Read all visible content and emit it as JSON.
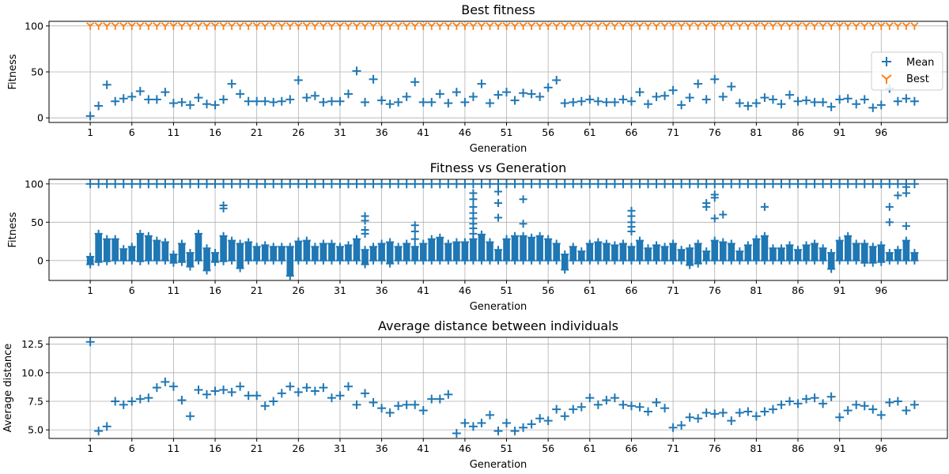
{
  "figure": {
    "colors": {
      "blue": "#1f77b4",
      "orange": "#ff7f0e",
      "grid": "#b0b0b0"
    }
  },
  "chart_data": [
    {
      "type": "scatter",
      "title": "Best fitness",
      "xlabel": "Generation",
      "ylabel": "Fitness",
      "xlim": [
        -3.95,
        103.95
      ],
      "ylim": [
        -5,
        105
      ],
      "xticks": [
        1,
        6,
        11,
        16,
        21,
        26,
        31,
        36,
        41,
        46,
        51,
        56,
        61,
        66,
        71,
        76,
        81,
        86,
        91,
        96
      ],
      "yticks": [
        0,
        50,
        100
      ],
      "grid": true,
      "legend": {
        "placement": "right",
        "entries": [
          "Mean",
          "Best"
        ]
      },
      "series": [
        {
          "name": "Mean",
          "marker": "plus",
          "color": "#1f77b4",
          "x": [
            1,
            2,
            3,
            4,
            5,
            6,
            7,
            8,
            9,
            10,
            11,
            12,
            13,
            14,
            15,
            16,
            17,
            18,
            19,
            20,
            21,
            22,
            23,
            24,
            25,
            26,
            27,
            28,
            29,
            30,
            31,
            32,
            33,
            34,
            35,
            36,
            37,
            38,
            39,
            40,
            41,
            42,
            43,
            44,
            45,
            46,
            47,
            48,
            49,
            50,
            51,
            52,
            53,
            54,
            55,
            56,
            57,
            58,
            59,
            60,
            61,
            62,
            63,
            64,
            65,
            66,
            67,
            68,
            69,
            70,
            71,
            72,
            73,
            74,
            75,
            76,
            77,
            78,
            79,
            80,
            81,
            82,
            83,
            84,
            85,
            86,
            87,
            88,
            89,
            90,
            91,
            92,
            93,
            94,
            95,
            96,
            97,
            98,
            99,
            100
          ],
          "values": [
            2,
            13,
            36,
            18,
            21,
            23,
            29,
            20,
            20,
            28,
            16,
            17,
            14,
            22,
            15,
            14,
            20,
            37,
            26,
            18,
            18,
            18,
            17,
            18,
            20,
            41,
            22,
            24,
            17,
            18,
            18,
            26,
            51,
            17,
            42,
            19,
            15,
            17,
            23,
            39,
            17,
            17,
            26,
            16,
            28,
            17,
            23,
            37,
            16,
            25,
            28,
            19,
            27,
            26,
            23,
            33,
            41,
            16,
            17,
            18,
            20,
            18,
            17,
            17,
            20,
            18,
            28,
            15,
            23,
            24,
            30,
            14,
            22,
            37,
            20,
            42,
            23,
            34,
            16,
            13,
            16,
            22,
            20,
            15,
            25,
            18,
            19,
            17,
            17,
            12,
            20,
            21,
            15,
            20,
            11,
            14,
            32,
            18,
            21,
            18
          ]
        },
        {
          "name": "Best",
          "marker": "tri_down",
          "color": "#ff7f0e",
          "x": [
            1,
            2,
            3,
            4,
            5,
            6,
            7,
            8,
            9,
            10,
            11,
            12,
            13,
            14,
            15,
            16,
            17,
            18,
            19,
            20,
            21,
            22,
            23,
            24,
            25,
            26,
            27,
            28,
            29,
            30,
            31,
            32,
            33,
            34,
            35,
            36,
            37,
            38,
            39,
            40,
            41,
            42,
            43,
            44,
            45,
            46,
            47,
            48,
            49,
            50,
            51,
            52,
            53,
            54,
            55,
            56,
            57,
            58,
            59,
            60,
            61,
            62,
            63,
            64,
            65,
            66,
            67,
            68,
            69,
            70,
            71,
            72,
            73,
            74,
            75,
            76,
            77,
            78,
            79,
            80,
            81,
            82,
            83,
            84,
            85,
            86,
            87,
            88,
            89,
            90,
            91,
            92,
            93,
            94,
            95,
            96,
            97,
            98,
            99,
            100
          ],
          "values": [
            100,
            100,
            100,
            100,
            100,
            100,
            100,
            100,
            100,
            100,
            100,
            100,
            100,
            100,
            100,
            100,
            100,
            100,
            100,
            100,
            100,
            100,
            100,
            100,
            100,
            100,
            100,
            100,
            100,
            100,
            100,
            100,
            100,
            100,
            100,
            100,
            100,
            100,
            100,
            100,
            100,
            100,
            100,
            100,
            100,
            100,
            100,
            100,
            100,
            100,
            100,
            100,
            100,
            100,
            100,
            100,
            100,
            100,
            100,
            100,
            100,
            100,
            100,
            100,
            100,
            100,
            100,
            100,
            100,
            100,
            100,
            100,
            100,
            100,
            100,
            100,
            100,
            100,
            100,
            100,
            100,
            100,
            100,
            100,
            100,
            100,
            100,
            100,
            100,
            100,
            100,
            100,
            100,
            100,
            100,
            100,
            100,
            100,
            100,
            100
          ]
        }
      ]
    },
    {
      "type": "scatter",
      "title": "Fitness vs Generation",
      "xlabel": "Generation",
      "ylabel": "Fitness",
      "xlim": [
        -3.95,
        103.95
      ],
      "ylim": [
        -26,
        106
      ],
      "xticks": [
        1,
        6,
        11,
        16,
        21,
        26,
        31,
        36,
        41,
        46,
        51,
        56,
        61,
        66,
        71,
        76,
        81,
        86,
        91,
        96
      ],
      "yticks": [
        0,
        50,
        100
      ],
      "grid": true,
      "series": [
        {
          "marker": "plus",
          "color": "#1f77b4",
          "description_of_dense_band": "per-generation individuals spread between low and high values",
          "band_low": [
            -5,
            -2,
            -1,
            0,
            0,
            0,
            -1,
            0,
            0,
            0,
            -3,
            -2,
            -8,
            0,
            -13,
            -2,
            -1,
            0,
            -10,
            0,
            0,
            0,
            0,
            0,
            -20,
            0,
            0,
            0,
            0,
            0,
            0,
            0,
            0,
            -5,
            0,
            0,
            -4,
            0,
            0,
            0,
            0,
            0,
            0,
            0,
            0,
            0,
            0,
            0,
            0,
            0,
            0,
            0,
            0,
            0,
            0,
            0,
            0,
            -12,
            0,
            0,
            0,
            0,
            0,
            0,
            0,
            0,
            0,
            0,
            0,
            0,
            0,
            0,
            -6,
            -4,
            0,
            0,
            0,
            0,
            0,
            0,
            0,
            0,
            0,
            0,
            0,
            0,
            0,
            0,
            0,
            -11,
            0,
            0,
            0,
            -3,
            -3,
            -2,
            0,
            0,
            0,
            0
          ],
          "band_high": [
            5,
            35,
            28,
            28,
            15,
            18,
            35,
            32,
            26,
            24,
            8,
            22,
            10,
            35,
            16,
            10,
            32,
            26,
            22,
            24,
            18,
            20,
            18,
            18,
            18,
            25,
            26,
            18,
            22,
            22,
            18,
            20,
            28,
            14,
            18,
            22,
            24,
            18,
            22,
            18,
            22,
            28,
            30,
            22,
            24,
            24,
            28,
            34,
            24,
            14,
            28,
            32,
            32,
            30,
            32,
            28,
            22,
            8,
            18,
            12,
            22,
            24,
            22,
            20,
            22,
            18,
            26,
            16,
            20,
            18,
            22,
            14,
            16,
            22,
            12,
            26,
            24,
            22,
            12,
            20,
            28,
            32,
            16,
            16,
            20,
            14,
            20,
            22,
            16,
            10,
            26,
            32,
            22,
            22,
            18,
            20,
            10,
            14,
            26,
            10
          ],
          "outliers": [
            {
              "x": 17,
              "y": 72
            },
            {
              "x": 17,
              "y": 68
            },
            {
              "x": 34,
              "y": 58
            },
            {
              "x": 34,
              "y": 52
            },
            {
              "x": 34,
              "y": 40
            },
            {
              "x": 34,
              "y": 35
            },
            {
              "x": 40,
              "y": 46
            },
            {
              "x": 40,
              "y": 38
            },
            {
              "x": 40,
              "y": 28
            },
            {
              "x": 47,
              "y": 88
            },
            {
              "x": 47,
              "y": 80
            },
            {
              "x": 47,
              "y": 70
            },
            {
              "x": 47,
              "y": 62
            },
            {
              "x": 47,
              "y": 55
            },
            {
              "x": 47,
              "y": 48
            },
            {
              "x": 47,
              "y": 42
            },
            {
              "x": 47,
              "y": 35
            },
            {
              "x": 50,
              "y": 90
            },
            {
              "x": 50,
              "y": 75
            },
            {
              "x": 50,
              "y": 56
            },
            {
              "x": 53,
              "y": 80
            },
            {
              "x": 53,
              "y": 48
            },
            {
              "x": 66,
              "y": 65
            },
            {
              "x": 66,
              "y": 58
            },
            {
              "x": 66,
              "y": 50
            },
            {
              "x": 66,
              "y": 44
            },
            {
              "x": 66,
              "y": 38
            },
            {
              "x": 75,
              "y": 75
            },
            {
              "x": 75,
              "y": 70
            },
            {
              "x": 76,
              "y": 86
            },
            {
              "x": 76,
              "y": 82
            },
            {
              "x": 76,
              "y": 55
            },
            {
              "x": 77,
              "y": 60
            },
            {
              "x": 82,
              "y": 70
            },
            {
              "x": 97,
              "y": 70
            },
            {
              "x": 97,
              "y": 50
            },
            {
              "x": 98,
              "y": 85
            },
            {
              "x": 99,
              "y": 96
            },
            {
              "x": 99,
              "y": 88
            },
            {
              "x": 99,
              "y": 45
            }
          ],
          "top_band": 100
        }
      ]
    },
    {
      "type": "scatter",
      "title": "Average distance between individuals",
      "xlabel": "Generation",
      "ylabel": "Average distance",
      "xlim": [
        -3.95,
        103.95
      ],
      "ylim": [
        4.25,
        13.1
      ],
      "xticks": [
        1,
        6,
        11,
        16,
        21,
        26,
        31,
        36,
        41,
        46,
        51,
        56,
        61,
        66,
        71,
        76,
        81,
        86,
        91,
        96
      ],
      "yticks": [
        5.0,
        7.5,
        10.0,
        12.5
      ],
      "ytick_labels": [
        "5.0",
        "7.5",
        "10.0",
        "12.5"
      ],
      "grid": true,
      "series": [
        {
          "marker": "plus",
          "color": "#1f77b4",
          "x": [
            1,
            2,
            3,
            4,
            5,
            6,
            7,
            8,
            9,
            10,
            11,
            12,
            13,
            14,
            15,
            16,
            17,
            18,
            19,
            20,
            21,
            22,
            23,
            24,
            25,
            26,
            27,
            28,
            29,
            30,
            31,
            32,
            33,
            34,
            35,
            36,
            37,
            38,
            39,
            40,
            41,
            42,
            43,
            44,
            45,
            46,
            47,
            48,
            49,
            50,
            51,
            52,
            53,
            54,
            55,
            56,
            57,
            58,
            59,
            60,
            61,
            62,
            63,
            64,
            65,
            66,
            67,
            68,
            69,
            70,
            71,
            72,
            73,
            74,
            75,
            76,
            77,
            78,
            79,
            80,
            81,
            82,
            83,
            84,
            85,
            86,
            87,
            88,
            89,
            90,
            91,
            92,
            93,
            94,
            95,
            96,
            97,
            98,
            99,
            100
          ],
          "values": [
            12.7,
            4.9,
            5.3,
            7.5,
            7.2,
            7.5,
            7.7,
            7.8,
            8.7,
            9.2,
            8.8,
            7.6,
            6.2,
            8.5,
            8.1,
            8.4,
            8.5,
            8.3,
            8.8,
            8.0,
            8.0,
            7.1,
            7.5,
            8.2,
            8.8,
            8.3,
            8.7,
            8.4,
            8.7,
            7.8,
            8.0,
            8.8,
            7.2,
            8.2,
            7.4,
            6.9,
            6.5,
            7.1,
            7.2,
            7.2,
            6.7,
            7.7,
            7.7,
            8.1,
            4.7,
            5.6,
            5.3,
            5.6,
            6.3,
            4.9,
            5.6,
            4.9,
            5.2,
            5.5,
            6.0,
            5.8,
            6.8,
            6.2,
            6.8,
            7.0,
            7.8,
            7.2,
            7.6,
            7.8,
            7.2,
            7.1,
            7.0,
            6.6,
            7.4,
            6.9,
            5.2,
            5.4,
            6.1,
            6.0,
            6.5,
            6.4,
            6.5,
            5.8,
            6.5,
            6.6,
            6.2,
            6.6,
            6.8,
            7.2,
            7.5,
            7.3,
            7.7,
            7.8,
            7.3,
            7.9,
            6.1,
            6.7,
            7.2,
            7.1,
            6.8,
            6.3,
            7.4,
            7.5,
            6.7,
            7.2
          ]
        }
      ]
    }
  ]
}
